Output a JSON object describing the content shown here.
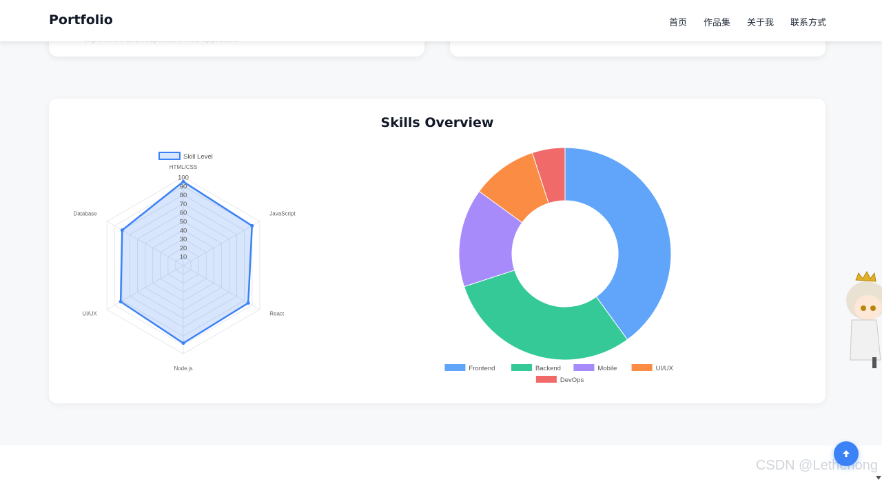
{
  "brand": "Portfolio",
  "nav": [
    {
      "label": "首页"
    },
    {
      "label": "作品集"
    },
    {
      "label": "关于我"
    },
    {
      "label": "联系方式"
    }
  ],
  "top_card_text": "E-commerce platform built with modern technologies for a seamless shopping experience and responsive web application",
  "skills_title": "Skills Overview",
  "watermark": "CSDN @Lethehong",
  "colors": {
    "accent": "#3b82f6",
    "frontend": "#60a5fa",
    "backend": "#34c997",
    "mobile": "#a78bfa",
    "uiux": "#fb8c43",
    "devops": "#f06a6a"
  },
  "chart_data": [
    {
      "type": "radar",
      "legend": [
        "Skill Level"
      ],
      "categories": [
        "HTML/CSS",
        "JavaScript",
        "React",
        "Node.js",
        "UI/UX",
        "Database"
      ],
      "series": [
        {
          "name": "Skill Level",
          "values": [
            95,
            90,
            85,
            88,
            82,
            80
          ]
        }
      ],
      "rlim": [
        0,
        100
      ],
      "tick_labels": [
        "10",
        "20",
        "30",
        "40",
        "50",
        "60",
        "70",
        "80",
        "90",
        "100"
      ],
      "grid": true,
      "legend_placement": "top"
    },
    {
      "type": "pie",
      "variant": "doughnut",
      "categories": [
        "Frontend",
        "Backend",
        "Mobile",
        "UI/UX",
        "DevOps"
      ],
      "values": [
        40,
        30,
        15,
        10,
        5
      ],
      "legend_placement": "bottom"
    }
  ],
  "icons": {
    "back_to_top": "arrow-up-icon"
  }
}
